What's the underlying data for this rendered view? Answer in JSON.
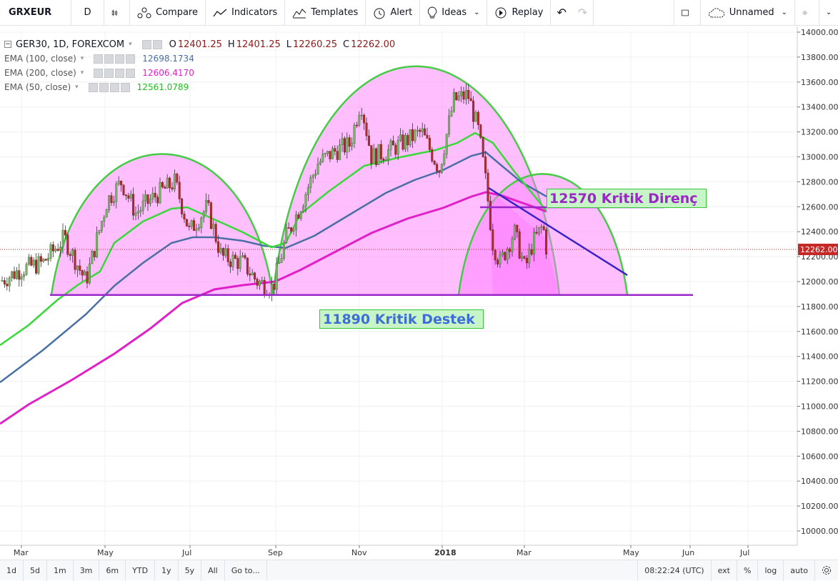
{
  "toolbar": {
    "symbol": "GRXEUR",
    "interval": "D",
    "compare": "Compare",
    "indicators": "Indicators",
    "templates": "Templates",
    "alert": "Alert",
    "ideas": "Ideas",
    "replay": "Replay",
    "layout_name": "Unnamed"
  },
  "legend": {
    "title": "GER30, 1D, FOREXCOM",
    "open_label": "O",
    "open": "12401.25",
    "high_label": "H",
    "high": "12401.25",
    "low_label": "L",
    "low": "12260.25",
    "close_label": "C",
    "close": "12262.00",
    "indicators": [
      {
        "name": "EMA (100, close)",
        "value": "12698.1734",
        "color": "#4a6fa5"
      },
      {
        "name": "EMA (200, close)",
        "value": "12606.4170",
        "color": "#e020c8"
      },
      {
        "name": "EMA (50, close)",
        "value": "12561.0789",
        "color": "#38d838"
      }
    ]
  },
  "price_axis": {
    "labels": [
      "14000.00",
      "13800.00",
      "13600.00",
      "13400.00",
      "13200.00",
      "13000.00",
      "12800.00",
      "12600.00",
      "12400.00",
      "12200.00",
      "12000.00",
      "11800.00",
      "11600.00",
      "11400.00",
      "11200.00",
      "11000.00",
      "10800.00",
      "10600.00",
      "10400.00",
      "10200.00",
      "10000.00"
    ],
    "current_price": "12262.00"
  },
  "time_axis": {
    "labels": [
      "Mar",
      "May",
      "Jul",
      "Sep",
      "Nov",
      "2018",
      "Mar",
      "May",
      "Jun",
      "Jul"
    ]
  },
  "annotations": {
    "support": "11890 Kritik Destek",
    "resistance": "12570 Kritik Direnç"
  },
  "bottombar": {
    "ranges": [
      "1d",
      "5d",
      "1m",
      "3m",
      "6m",
      "YTD",
      "1y",
      "5y",
      "All"
    ],
    "goto": "Go to...",
    "time": "08:22:24 (UTC)",
    "ext": "ext",
    "percent": "%",
    "log": "log",
    "auto": "auto"
  },
  "colors": {
    "ema100": "#4a6fa5",
    "ema200": "#e020c8",
    "ema50": "#38d838",
    "arc": "#44cc44",
    "fill": "#ff80ff",
    "support_line": "#9b27c9",
    "trend_line": "#3a20c8",
    "candle_up": "#4b7a3a",
    "candle_down": "#8b1a1a"
  }
}
